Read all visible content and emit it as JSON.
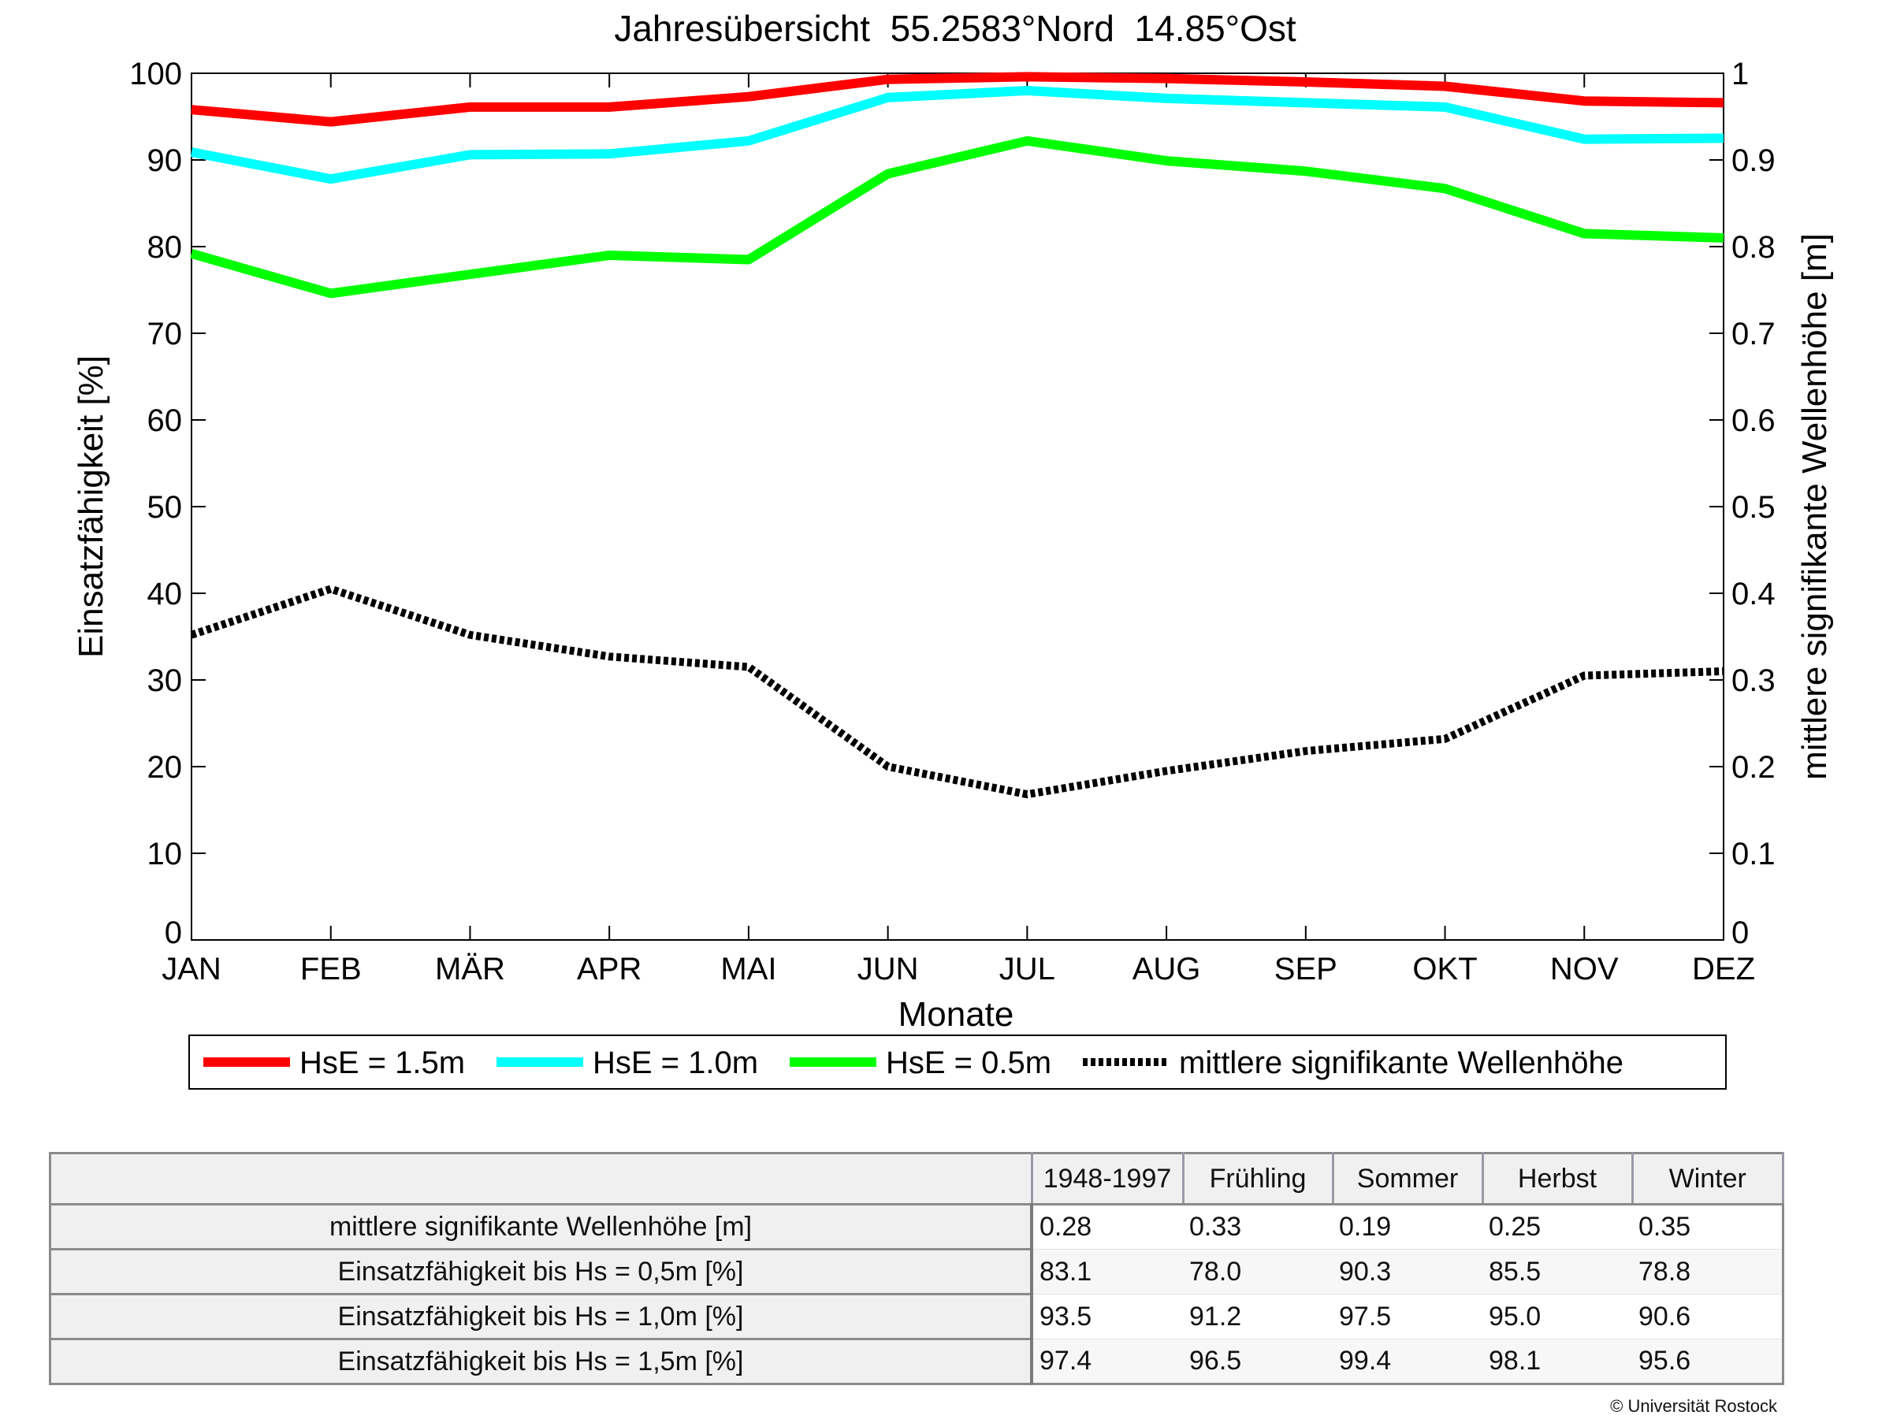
{
  "chart_data": {
    "type": "line",
    "title": "Jahresübersicht  55.2583°Nord  14.85°Ost",
    "xlabel": "Monate",
    "ylabel": "Einsatzfähigkeit [%]",
    "ylabel_right": "mittlere signifikante Wellenhöhe [m]",
    "categories": [
      "JAN",
      "FEB",
      "MÄR",
      "APR",
      "MAI",
      "JUN",
      "JUL",
      "AUG",
      "SEP",
      "OKT",
      "NOV",
      "DEZ"
    ],
    "ylim": [
      0,
      100
    ],
    "ylim_right": [
      0,
      1
    ],
    "yticks": [
      "0",
      "10",
      "20",
      "30",
      "40",
      "50",
      "60",
      "70",
      "80",
      "90",
      "100"
    ],
    "yticks_right": [
      "0",
      "0.1",
      "0.2",
      "0.3",
      "0.4",
      "0.5",
      "0.6",
      "0.7",
      "0.8",
      "0.9",
      "1"
    ],
    "grid": false,
    "legend_position": "bottom",
    "series": [
      {
        "name": "HsE = 1.5m",
        "axis": "left",
        "color": "#ff0000",
        "style": "solid",
        "values": [
          95.8,
          94.4,
          96.1,
          96.1,
          97.3,
          99.3,
          99.6,
          99.4,
          99.0,
          98.5,
          96.8,
          96.6
        ]
      },
      {
        "name": "HsE = 1.0m",
        "axis": "left",
        "color": "#00ffff",
        "style": "solid",
        "values": [
          90.9,
          87.8,
          90.6,
          90.7,
          92.2,
          97.2,
          98.0,
          97.1,
          96.6,
          96.1,
          92.4,
          92.5
        ]
      },
      {
        "name": "HsE = 0.5m",
        "axis": "left",
        "color": "#00ff00",
        "style": "solid",
        "values": [
          79.2,
          74.6,
          76.8,
          79.0,
          78.5,
          88.4,
          92.2,
          89.9,
          88.7,
          86.7,
          81.5,
          81.0
        ]
      },
      {
        "name": "mittlere signifikante Wellenhöhe",
        "axis": "right",
        "color": "#000000",
        "style": "dotted",
        "values": [
          0.352,
          0.405,
          0.352,
          0.327,
          0.315,
          0.2,
          0.168,
          0.195,
          0.218,
          0.232,
          0.305,
          0.31
        ]
      }
    ]
  },
  "table": {
    "headers": [
      "1948-1997",
      "Frühling",
      "Sommer",
      "Herbst",
      "Winter"
    ],
    "rows": [
      {
        "label": "mittlere signifikante Wellenhöhe [m]",
        "values": [
          "0.28",
          "0.33",
          "0.19",
          "0.25",
          "0.35"
        ]
      },
      {
        "label": "Einsatzfähigkeit bis Hs = 0,5m [%]",
        "values": [
          "83.1",
          "78.0",
          "90.3",
          "85.5",
          "78.8"
        ]
      },
      {
        "label": "Einsatzfähigkeit bis Hs = 1,0m [%]",
        "values": [
          "93.5",
          "91.2",
          "97.5",
          "95.0",
          "90.6"
        ]
      },
      {
        "label": "Einsatzfähigkeit bis Hs = 1,5m [%]",
        "values": [
          "97.4",
          "96.5",
          "99.4",
          "98.1",
          "95.6"
        ]
      }
    ]
  },
  "copyright": "© Universität Rostock"
}
